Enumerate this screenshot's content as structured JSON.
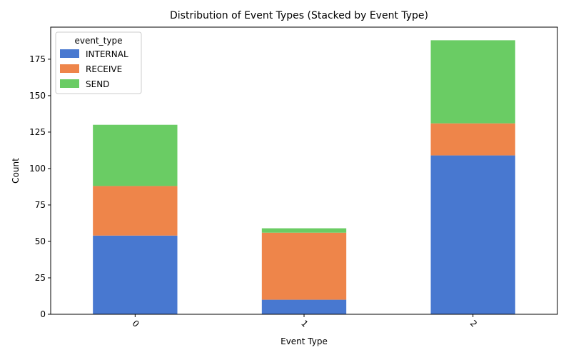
{
  "chart_data": {
    "type": "bar",
    "stacked": true,
    "title": "Distribution of Event Types (Stacked by Event Type)",
    "xlabel": "Event Type",
    "ylabel": "Count",
    "categories": [
      "0",
      "1",
      "2"
    ],
    "series": [
      {
        "name": "INTERNAL",
        "values": [
          54,
          10,
          109
        ],
        "color": "#4878d0"
      },
      {
        "name": "RECEIVE",
        "values": [
          34,
          46,
          22
        ],
        "color": "#ee854a"
      },
      {
        "name": "SEND",
        "values": [
          42,
          3,
          57
        ],
        "color": "#6acc64"
      }
    ],
    "ylim": [
      0,
      197
    ],
    "yticks": [
      0,
      25,
      50,
      75,
      100,
      125,
      150,
      175
    ],
    "legend": {
      "title": "event_type",
      "position": "top-left"
    },
    "grid": false
  }
}
